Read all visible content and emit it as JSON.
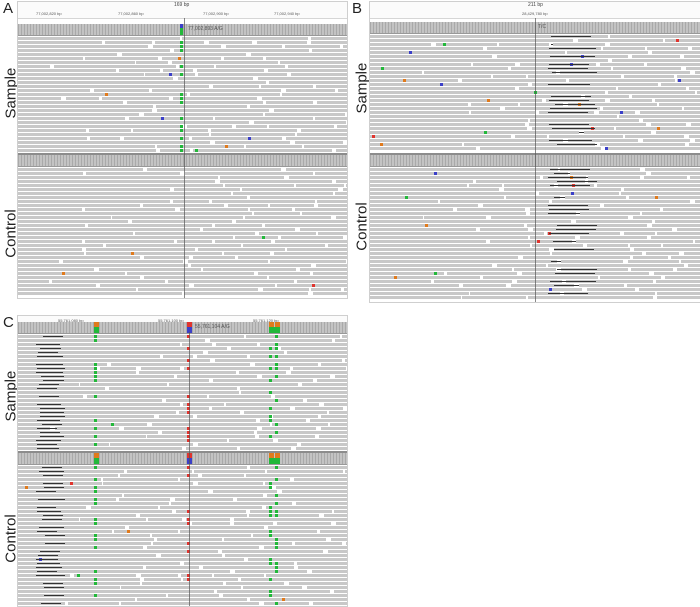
{
  "figure": {
    "panel_a_letter": "A",
    "panel_b_letter": "B",
    "panel_c_letter": "C",
    "sample_label": "Sample",
    "control_label": "Control"
  },
  "panel_a": {
    "ruler_title": "169 bp",
    "ruler_ticks": [
      "77,002,820 bp",
      "77,002,860 bp",
      "77,002,900 bp",
      "77,002,940 bp"
    ],
    "coverage_note": "77,002,893 A/G"
  },
  "panel_b": {
    "ruler_title": "211 bp",
    "ruler_ticks": [
      "28,429,780 bp"
    ],
    "coverage_note": "T/C"
  },
  "panel_c": {
    "ruler_ticks": [
      "55,761,080 bp",
      "55,761,100 bp",
      "55,761,120 bp"
    ],
    "coverage_note": "55,761,104 A/G"
  },
  "colors": {
    "read": "#c8c8c8",
    "A": "#22b83a",
    "C": "#3b3fc8",
    "G": "#e07a1c",
    "T": "#e0342e"
  }
}
